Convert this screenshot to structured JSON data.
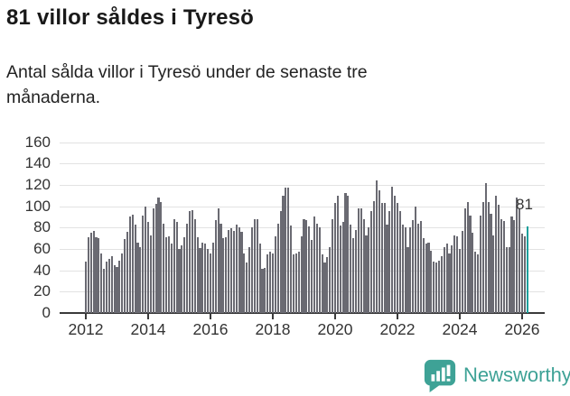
{
  "header": {
    "title": "81 villor såldes i Tyresö",
    "subtitle": "Antal sålda villor i Tyresö under de senaste tre månaderna."
  },
  "footer": {
    "brand": "Newsworthy"
  },
  "colors": {
    "bar": "#6a6a72",
    "highlight": "#17a09c",
    "axis": "#3a3a3a",
    "grid": "#e2e2e2",
    "text": "#333333",
    "brand": "#3ea296"
  },
  "chart_data": {
    "type": "bar",
    "title": "81 villor såldes i Tyresö",
    "subtitle": "Antal sålda villor i Tyresö under de senaste tre månaderna.",
    "x_start": "2012-01",
    "x_interval": "monthly",
    "x_tick_years": [
      2012,
      2014,
      2016,
      2018,
      2020,
      2022,
      2024,
      2026
    ],
    "y_ticks": [
      0,
      20,
      40,
      60,
      80,
      100,
      120,
      140,
      160
    ],
    "ylim": [
      0,
      160
    ],
    "grid": true,
    "highlight_last": true,
    "annotation": {
      "text": "81",
      "value": 81
    },
    "values": [
      48,
      71,
      75,
      77,
      71,
      70,
      56,
      41,
      48,
      51,
      53,
      45,
      43,
      49,
      56,
      69,
      76,
      90,
      92,
      83,
      66,
      62,
      91,
      100,
      85,
      73,
      98,
      102,
      108,
      104,
      84,
      71,
      72,
      65,
      88,
      85,
      60,
      63,
      71,
      84,
      95,
      96,
      88,
      71,
      61,
      66,
      65,
      60,
      56,
      66,
      87,
      98,
      84,
      70,
      71,
      78,
      79,
      77,
      83,
      80,
      76,
      56,
      47,
      62,
      80,
      88,
      88,
      65,
      41,
      42,
      55,
      57,
      56,
      72,
      84,
      95,
      110,
      117,
      117,
      82,
      55,
      56,
      57,
      72,
      88,
      87,
      81,
      68,
      90,
      84,
      80,
      55,
      47,
      52,
      62,
      88,
      103,
      110,
      82,
      85,
      112,
      110,
      83,
      70,
      78,
      98,
      98,
      88,
      73,
      80,
      95,
      105,
      124,
      115,
      103,
      103,
      83,
      95,
      118,
      110,
      103,
      95,
      83,
      80,
      62,
      80,
      87,
      100,
      84,
      86,
      70,
      65,
      66,
      58,
      48,
      47,
      49,
      53,
      62,
      65,
      56,
      63,
      73,
      72,
      60,
      77,
      98,
      104,
      91,
      75,
      57,
      55,
      91,
      104,
      122,
      104,
      93,
      73,
      110,
      101,
      88,
      86,
      62,
      62,
      90,
      87,
      108,
      98,
      74,
      72,
      81
    ]
  }
}
